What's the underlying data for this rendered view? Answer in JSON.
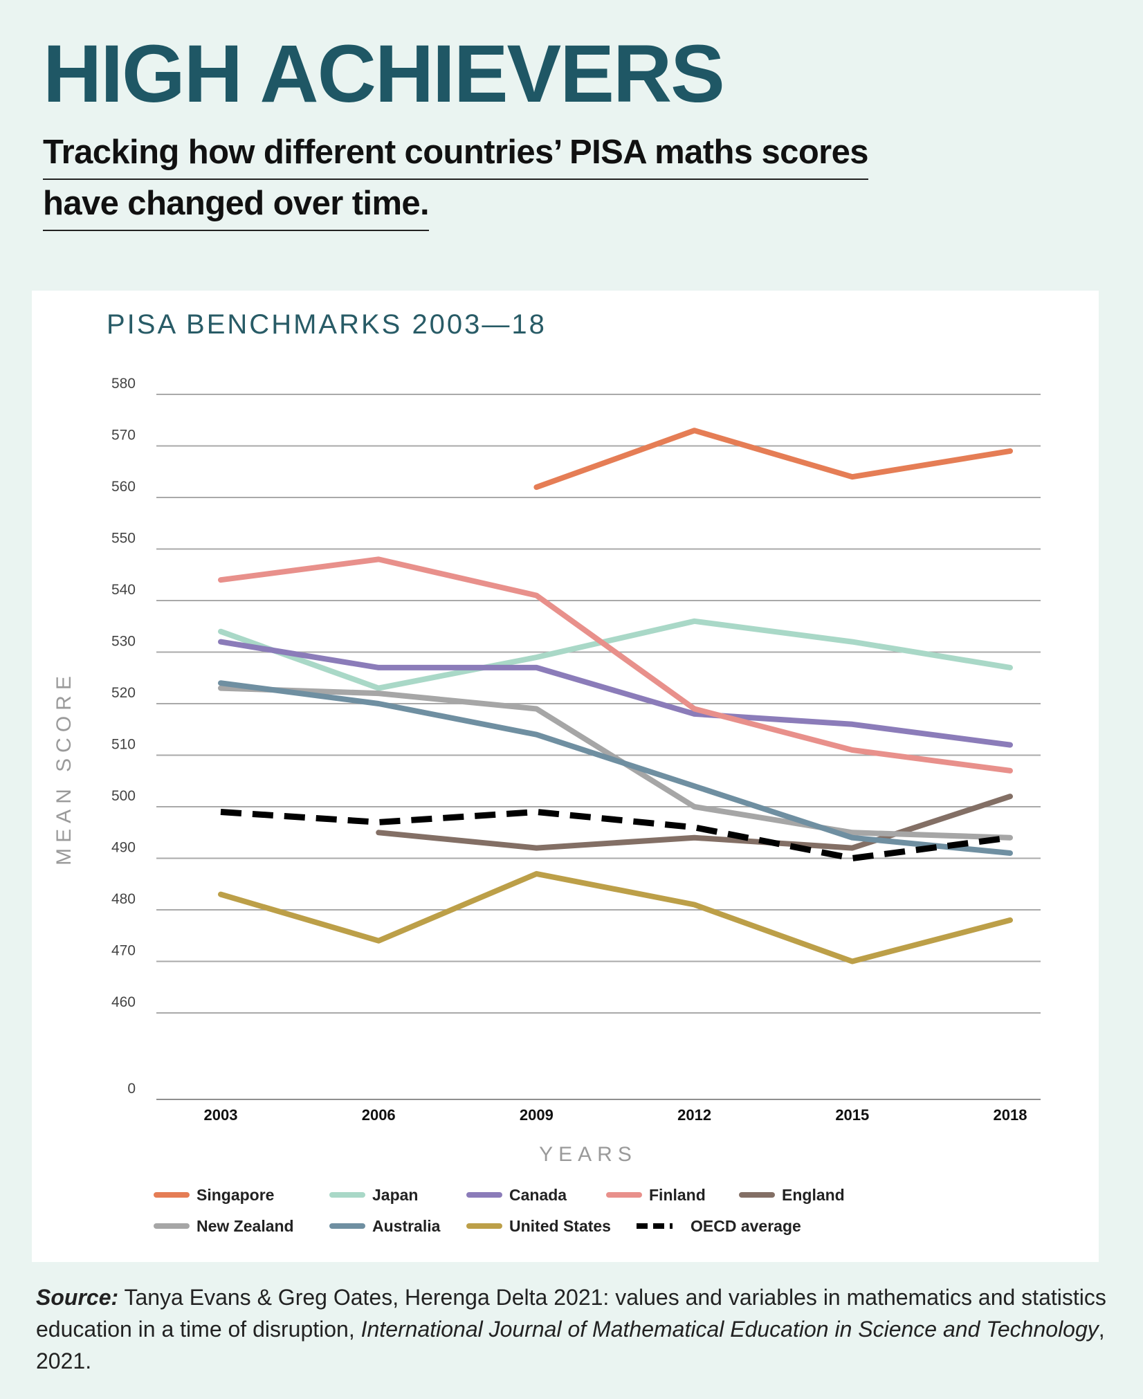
{
  "header": {
    "title": "HIGH ACHIEVERS",
    "subtitle_line1": "Tracking how different countries’ PISA maths scores",
    "subtitle_line2": "have changed over time."
  },
  "chart_data": {
    "type": "line",
    "title": "PISA BENCHMARKS 2003—18",
    "xlabel": "YEARS",
    "ylabel": "MEAN SCORE",
    "x": [
      "2003",
      "2006",
      "2009",
      "2012",
      "2015",
      "2018"
    ],
    "y_ticks": [
      580,
      570,
      560,
      550,
      540,
      530,
      520,
      510,
      500,
      490,
      480,
      470,
      460,
      0
    ],
    "ylim": [
      0,
      580
    ],
    "y_axis_break": "between 0 and 460",
    "grid": true,
    "legend_position": "bottom-left",
    "series": [
      {
        "name": "Singapore",
        "color": "#e57d55",
        "values": [
          null,
          null,
          562,
          573,
          564,
          569
        ]
      },
      {
        "name": "Japan",
        "color": "#a9d8c7",
        "values": [
          534,
          523,
          529,
          536,
          532,
          527
        ]
      },
      {
        "name": "Canada",
        "color": "#8b7cb9",
        "values": [
          532,
          527,
          527,
          518,
          516,
          512
        ]
      },
      {
        "name": "Finland",
        "color": "#e8908b",
        "values": [
          544,
          548,
          541,
          519,
          511,
          507
        ]
      },
      {
        "name": "England",
        "color": "#836f65",
        "values": [
          null,
          495,
          492,
          494,
          492,
          502
        ]
      },
      {
        "name": "New Zealand",
        "color": "#a6a6a6",
        "values": [
          523,
          522,
          519,
          500,
          495,
          494
        ]
      },
      {
        "name": "Australia",
        "color": "#6f8fa1",
        "values": [
          524,
          520,
          514,
          504,
          494,
          491
        ]
      },
      {
        "name": "United States",
        "color": "#bc9f48",
        "values": [
          483,
          474,
          487,
          481,
          470,
          478
        ]
      },
      {
        "name": "OECD average",
        "color": "#000000",
        "dashed": true,
        "values": [
          499,
          497,
          499,
          496,
          490,
          494
        ]
      }
    ]
  },
  "source": {
    "label": "Source:",
    "text_part1": " Tanya Evans & Greg Oates, Herenga Delta 2021: values and variables in mathematics and statistics education in a time of disruption, ",
    "journal": "International Journal of Mathematical Education in Science and Technology",
    "text_part2": ", 2021."
  }
}
